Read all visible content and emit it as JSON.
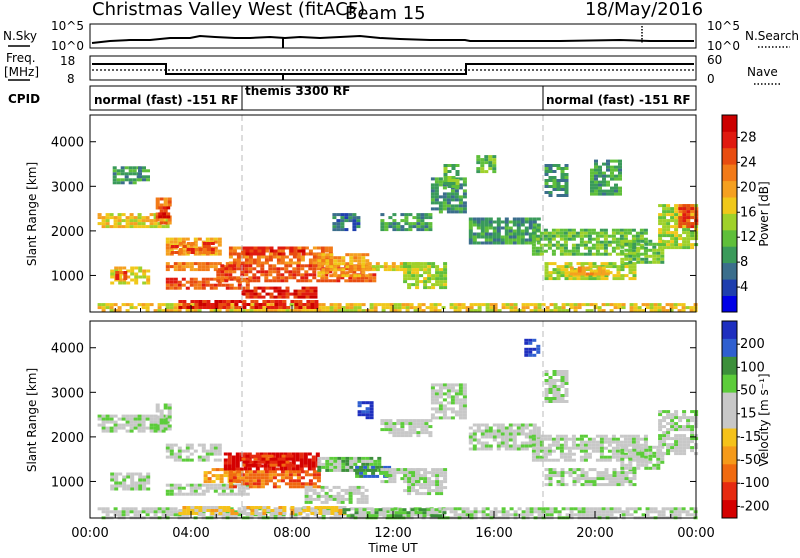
{
  "header": {
    "station": "Christmas Valley West (fitACF)",
    "beam": "Beam 15",
    "date": "18/May/2016"
  },
  "strip": {
    "nsky_label": "N.Sky",
    "nsky_ticks": [
      "10^5",
      "10^0"
    ],
    "nsearch_label": "N.Search",
    "nsearch_ticks": [
      "10^5",
      "10^0"
    ],
    "freq_label_1": "Freq.",
    "freq_label_2": "[MHz]",
    "freq_ticks": [
      "18",
      "8"
    ],
    "nave_label": "Nave",
    "nave_ticks": [
      "60",
      "0"
    ],
    "cpid_label": "CPID",
    "modes": [
      "normal (fast) -151 RF",
      "themis 3300 RF",
      "normal (fast) -151 RF"
    ]
  },
  "colors": {
    "power": [
      "#0000e6",
      "#1f3fae",
      "#3b6e8c",
      "#3a9a5a",
      "#5fbf3a",
      "#9fd12a",
      "#f0c81a",
      "#f5a020",
      "#f27a18",
      "#e84c10",
      "#e01a10",
      "#cc0000"
    ],
    "velocity": [
      "#1e2fbf",
      "#2f5fd0",
      "#3c8f3a",
      "#5ccc3a",
      "#c8c8c8",
      "#c8c8c8",
      "#f5c21a",
      "#f59a1a",
      "#f06a10",
      "#e62a10",
      "#d40000"
    ]
  },
  "chart_data": [
    {
      "type": "heatmap",
      "name": "power",
      "ylabel": "Slant Range [km]",
      "ylim": [
        180,
        4600
      ],
      "y_ticks": [
        "1000",
        "2000",
        "3000",
        "4000"
      ],
      "y_tick_values": [
        1000,
        2000,
        3000,
        4000
      ],
      "xlim_hours": [
        0,
        24
      ],
      "colorbar_label": "Power [dB]",
      "colorbar_ticks": [
        "4",
        "8",
        "12",
        "16",
        "20",
        "24",
        "28"
      ],
      "regions": [
        {
          "t0": 0.3,
          "t1": 3.0,
          "r0": 2100,
          "r1": 2400,
          "level": 6
        },
        {
          "t0": 2.6,
          "t1": 3.1,
          "r0": 2150,
          "r1": 2750,
          "level": 8
        },
        {
          "t0": 2.7,
          "t1": 3.05,
          "r0": 2300,
          "r1": 2550,
          "level": 10
        },
        {
          "t0": 0.9,
          "t1": 2.0,
          "r0": 3050,
          "r1": 3450,
          "level": 3
        },
        {
          "t0": 1.9,
          "t1": 2.3,
          "r0": 3150,
          "r1": 3450,
          "level": 3
        },
        {
          "t0": 0.8,
          "t1": 2.3,
          "r0": 850,
          "r1": 1200,
          "level": 6
        },
        {
          "t0": 1.0,
          "t1": 1.4,
          "r0": 900,
          "r1": 1100,
          "level": 9
        },
        {
          "t0": 3.0,
          "t1": 5.2,
          "r0": 1450,
          "r1": 1850,
          "level": 7
        },
        {
          "t0": 3.2,
          "t1": 4.8,
          "r0": 1500,
          "r1": 1750,
          "level": 9
        },
        {
          "t0": 3.0,
          "t1": 5.6,
          "r0": 1100,
          "r1": 1300,
          "level": 8
        },
        {
          "t0": 3.0,
          "t1": 6.3,
          "r0": 700,
          "r1": 950,
          "level": 9
        },
        {
          "t0": 5.5,
          "t1": 9.5,
          "r0": 1300,
          "r1": 1650,
          "level": 8
        },
        {
          "t0": 6.0,
          "t1": 8.5,
          "r0": 1450,
          "r1": 1650,
          "level": 10
        },
        {
          "t0": 5.0,
          "t1": 11.2,
          "r0": 850,
          "r1": 1250,
          "level": 9
        },
        {
          "t0": 6.0,
          "t1": 9.0,
          "r0": 500,
          "r1": 750,
          "level": 10
        },
        {
          "t0": 9.0,
          "t1": 11.0,
          "r0": 1000,
          "r1": 1500,
          "level": 7
        },
        {
          "t0": 11.0,
          "t1": 13.0,
          "r0": 1100,
          "r1": 1300,
          "level": 6
        },
        {
          "t0": 12.4,
          "t1": 14.0,
          "r0": 700,
          "r1": 1300,
          "level": 5
        },
        {
          "t0": 11.5,
          "t1": 13.5,
          "r0": 2000,
          "r1": 2400,
          "level": 3
        },
        {
          "t0": 9.6,
          "t1": 10.6,
          "r0": 2050,
          "r1": 2400,
          "level": 2
        },
        {
          "t0": 13.5,
          "t1": 14.8,
          "r0": 2400,
          "r1": 3200,
          "level": 3
        },
        {
          "t0": 14.0,
          "t1": 14.6,
          "r0": 3000,
          "r1": 3500,
          "level": 4
        },
        {
          "t0": 15.0,
          "t1": 17.8,
          "r0": 1700,
          "r1": 2300,
          "level": 3
        },
        {
          "t0": 17.5,
          "t1": 22.0,
          "r0": 1500,
          "r1": 2050,
          "level": 4
        },
        {
          "t0": 18.0,
          "t1": 21.5,
          "r0": 900,
          "r1": 1300,
          "level": 5
        },
        {
          "t0": 19.0,
          "t1": 20.5,
          "r0": 1000,
          "r1": 1200,
          "level": 7
        },
        {
          "t0": 21.0,
          "t1": 22.6,
          "r0": 1300,
          "r1": 1800,
          "level": 4
        },
        {
          "t0": 22.5,
          "t1": 24.0,
          "r0": 1600,
          "r1": 2600,
          "level": 5
        },
        {
          "t0": 23.3,
          "t1": 24.0,
          "r0": 2100,
          "r1": 2600,
          "level": 9
        },
        {
          "t0": 18.0,
          "t1": 18.8,
          "r0": 2800,
          "r1": 3500,
          "level": 3
        },
        {
          "t0": 15.3,
          "t1": 16.0,
          "r0": 3300,
          "r1": 3700,
          "level": 4
        },
        {
          "t0": 19.8,
          "t1": 21.0,
          "r0": 2800,
          "r1": 3600,
          "level": 3
        },
        {
          "t0": 0.3,
          "t1": 24.0,
          "r0": 200,
          "r1": 380,
          "level": 6
        },
        {
          "t0": 3.5,
          "t1": 9.0,
          "r0": 250,
          "r1": 450,
          "level": 10
        }
      ]
    },
    {
      "type": "heatmap",
      "name": "velocity",
      "xlabel": "Time UT",
      "ylabel": "Slant Range [km]",
      "ylim": [
        180,
        4600
      ],
      "y_ticks": [
        "1000",
        "2000",
        "3000",
        "4000"
      ],
      "y_tick_values": [
        1000,
        2000,
        3000,
        4000
      ],
      "xlim_hours": [
        0,
        24
      ],
      "x_ticks": [
        "00:00",
        "04:00",
        "08:00",
        "12:00",
        "16:00",
        "20:00",
        "00:00"
      ],
      "x_tick_values": [
        0,
        4,
        8,
        12,
        16,
        20,
        24
      ],
      "colorbar_label": "Velocity [m s⁻¹]",
      "colorbar_ticks": [
        "200",
        "100",
        "50",
        "15",
        "-15",
        "-50",
        "-100",
        "-200"
      ],
      "regions": [
        {
          "t0": 0.3,
          "t1": 3.0,
          "r0": 2100,
          "r1": 2500,
          "level": 4
        },
        {
          "t0": 2.6,
          "t1": 3.1,
          "r0": 2150,
          "r1": 2750,
          "level": 4
        },
        {
          "t0": 0.8,
          "t1": 2.3,
          "r0": 850,
          "r1": 1200,
          "level": 4
        },
        {
          "t0": 3.0,
          "t1": 5.2,
          "r0": 1450,
          "r1": 1850,
          "level": 4
        },
        {
          "t0": 3.0,
          "t1": 6.3,
          "r0": 700,
          "r1": 950,
          "level": 4
        },
        {
          "t0": 4.5,
          "t1": 6.0,
          "r0": 1000,
          "r1": 1300,
          "level": 7
        },
        {
          "t0": 5.3,
          "t1": 9.0,
          "r0": 1300,
          "r1": 1650,
          "level": 10
        },
        {
          "t0": 6.0,
          "t1": 8.0,
          "r0": 1350,
          "r1": 1600,
          "level": 9
        },
        {
          "t0": 5.5,
          "t1": 9.0,
          "r0": 900,
          "r1": 1250,
          "level": 8
        },
        {
          "t0": 9.0,
          "t1": 11.5,
          "r0": 1250,
          "r1": 1550,
          "level": 3
        },
        {
          "t0": 10.5,
          "t1": 11.8,
          "r0": 1100,
          "r1": 1350,
          "level": 2
        },
        {
          "t0": 8.5,
          "t1": 11.0,
          "r0": 500,
          "r1": 900,
          "level": 4
        },
        {
          "t0": 11.5,
          "t1": 13.0,
          "r0": 1000,
          "r1": 1300,
          "level": 4
        },
        {
          "t0": 12.4,
          "t1": 14.0,
          "r0": 700,
          "r1": 1300,
          "level": 4
        },
        {
          "t0": 11.5,
          "t1": 13.5,
          "r0": 2000,
          "r1": 2400,
          "level": 4
        },
        {
          "t0": 10.6,
          "t1": 11.2,
          "r0": 2400,
          "r1": 2800,
          "level": 0
        },
        {
          "t0": 13.5,
          "t1": 14.8,
          "r0": 2400,
          "r1": 3200,
          "level": 4
        },
        {
          "t0": 15.0,
          "t1": 17.8,
          "r0": 1700,
          "r1": 2300,
          "level": 4
        },
        {
          "t0": 17.5,
          "t1": 22.0,
          "r0": 1500,
          "r1": 2050,
          "level": 4
        },
        {
          "t0": 18.0,
          "t1": 21.5,
          "r0": 900,
          "r1": 1300,
          "level": 4
        },
        {
          "t0": 21.0,
          "t1": 22.6,
          "r0": 1300,
          "r1": 1800,
          "level": 4
        },
        {
          "t0": 22.5,
          "t1": 24.0,
          "r0": 1600,
          "r1": 2600,
          "level": 4
        },
        {
          "t0": 18.0,
          "t1": 18.8,
          "r0": 2800,
          "r1": 3500,
          "level": 4
        },
        {
          "t0": 17.2,
          "t1": 17.8,
          "r0": 3800,
          "r1": 4200,
          "level": 0
        },
        {
          "t0": 0.3,
          "t1": 24.0,
          "r0": 200,
          "r1": 420,
          "level": 4
        },
        {
          "t0": 3.5,
          "t1": 10.0,
          "r0": 250,
          "r1": 450,
          "level": 6
        },
        {
          "t0": 10.0,
          "t1": 14.0,
          "r0": 250,
          "r1": 400,
          "level": 3
        }
      ]
    }
  ]
}
